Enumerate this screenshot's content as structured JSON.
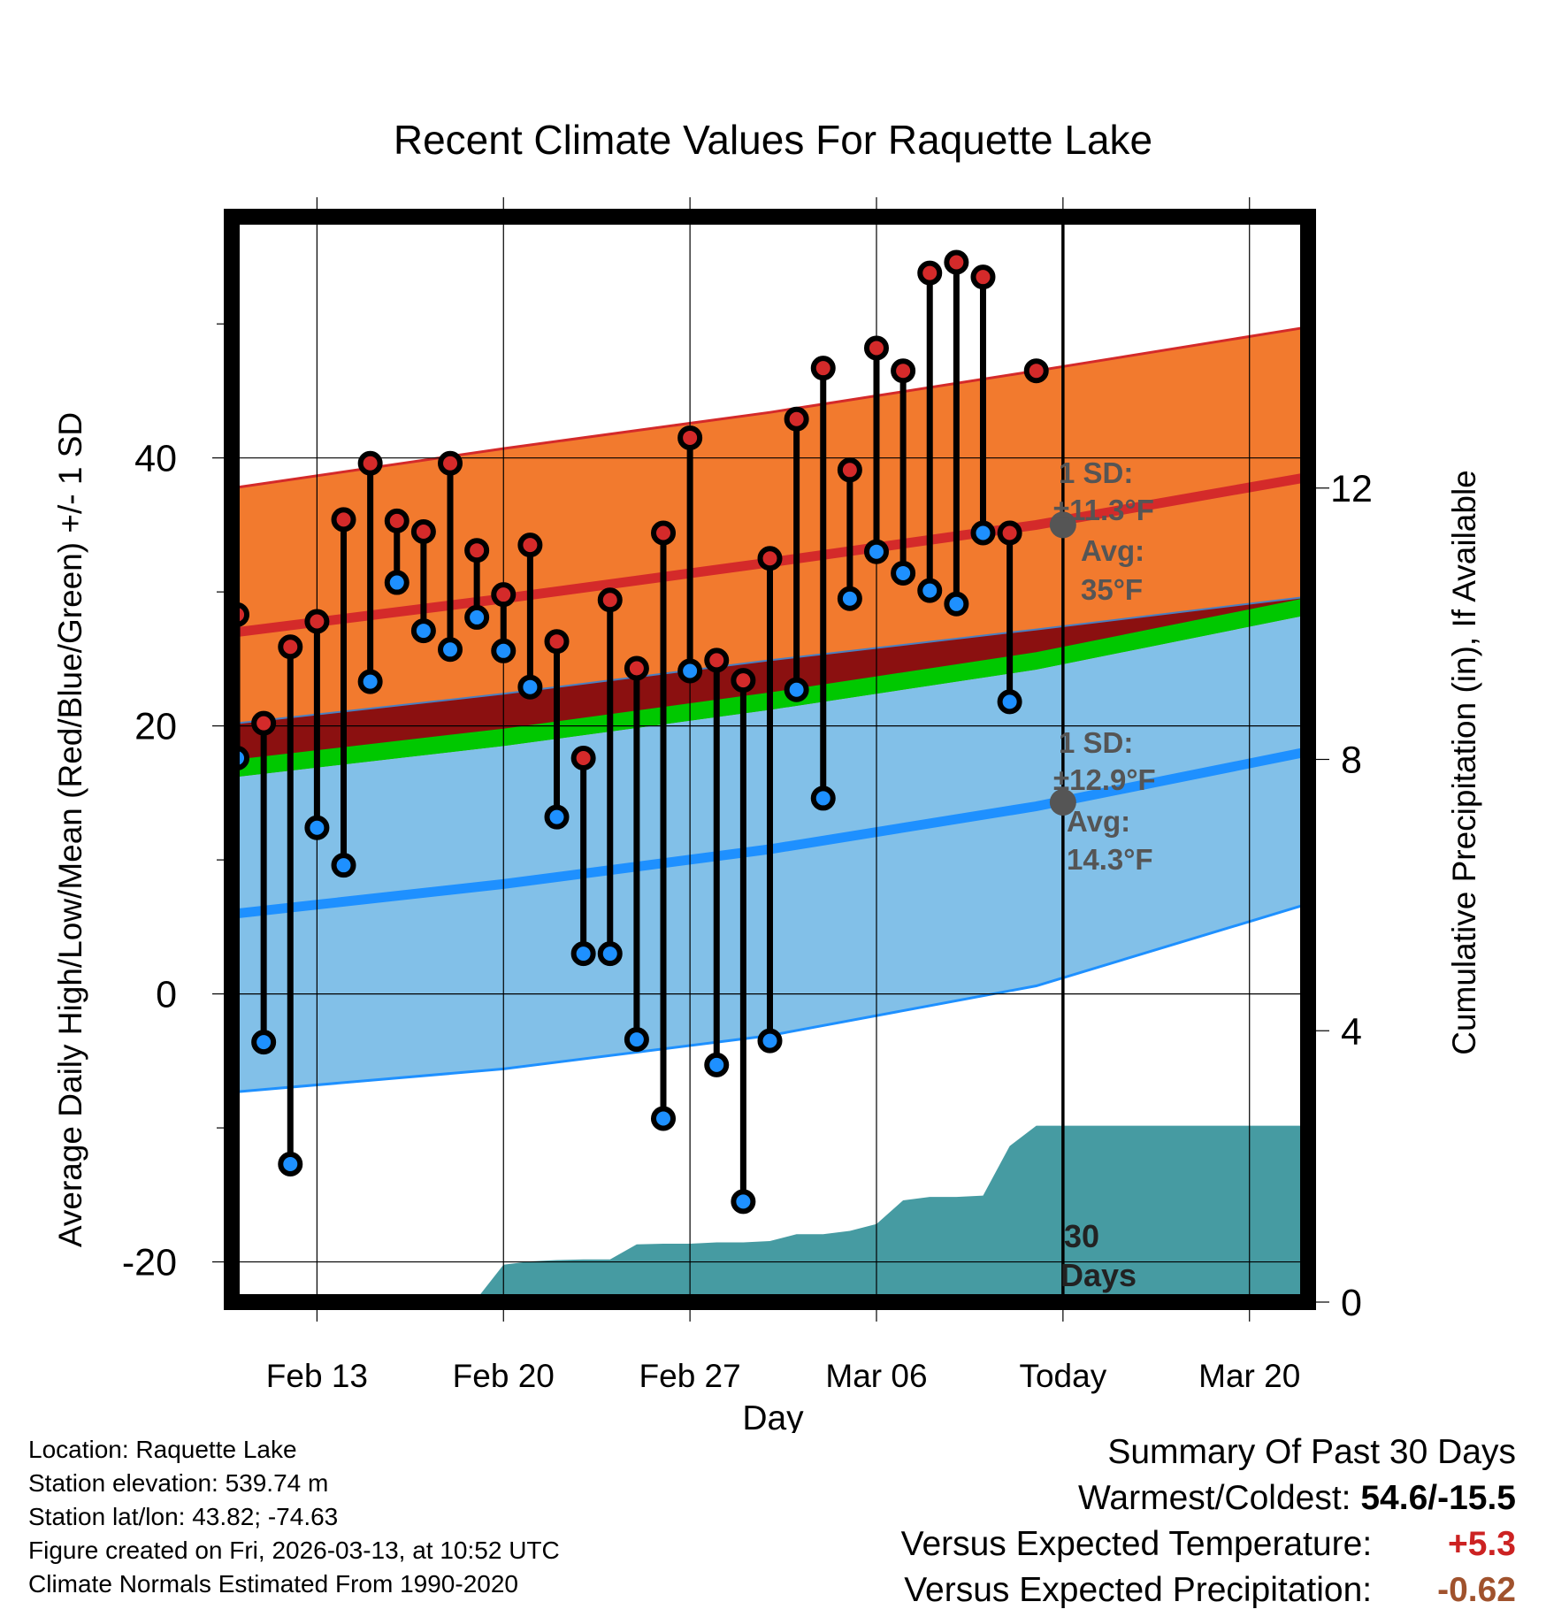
{
  "chart_data": {
    "type": "line",
    "title": "Recent Climate Values For Raquette Lake",
    "xlabel": "Day",
    "ylabel": "Average Daily High/Low/Mean (Red/Blue/Green) +/- 1 SD",
    "y2label": "Cumulative Precipitation (in), If Available",
    "x_ticks": [
      {
        "day": 13,
        "label": "Feb 13"
      },
      {
        "day": 20,
        "label": "Feb 20"
      },
      {
        "day": 27,
        "label": "Feb 27"
      },
      {
        "day": 34,
        "label": "Mar 06"
      },
      {
        "day": 41,
        "label": "Today"
      },
      {
        "day": 48,
        "label": "Mar 20"
      }
    ],
    "x_note": "x values are day numbers counted from Feb 1 (Feb 13 = 13, Mar 06 = 34, Today = Mar 13 = 41)",
    "xlim": [
      9.8,
      50.2
    ],
    "ylim": [
      -23,
      58
    ],
    "y_ticks": [
      -20,
      0,
      20,
      40
    ],
    "y_minor_ticks": [
      -10,
      10,
      30,
      50
    ],
    "y2lim": [
      0,
      16
    ],
    "y2_ticks": [
      0,
      4,
      8,
      12
    ],
    "today_day": 41,
    "normals": {
      "x": [
        10,
        20,
        30,
        40,
        50
      ],
      "high_avg": [
        27,
        29.5,
        32.2,
        35,
        38.5
      ],
      "high_upper": [
        37.8,
        40.7,
        43.4,
        46.5,
        49.7
      ],
      "low_avg": [
        6,
        8.2,
        10.8,
        14,
        18
      ],
      "low_lower": [
        -7.3,
        -5.6,
        -3.1,
        0.6,
        6.6
      ],
      "mean_avg": [
        16.2,
        18.5,
        21.2,
        24.2,
        28.2
      ],
      "mean_upper": [
        20.2,
        22.4,
        24.9,
        27.2,
        29.6
      ]
    },
    "series": [
      {
        "name": "Daily High",
        "color": "#d42a2a",
        "x": [
          10,
          11,
          12,
          13,
          14,
          15,
          16,
          17,
          18,
          19,
          20,
          21,
          22,
          23,
          24,
          25,
          26,
          27,
          28,
          29,
          30,
          31,
          32,
          33,
          34,
          35,
          36,
          37,
          38,
          39,
          40
        ],
        "values": [
          28.3,
          20.2,
          25.9,
          27.8,
          35.4,
          39.6,
          35.3,
          34.5,
          39.6,
          33.1,
          29.8,
          33.5,
          26.3,
          17.6,
          29.4,
          24.3,
          34.4,
          41.5,
          24.9,
          23.4,
          32.5,
          42.9,
          46.7,
          39.1,
          48.2,
          46.5,
          53.8,
          54.6,
          53.5,
          34.4,
          46.5
        ]
      },
      {
        "name": "Daily Low",
        "color": "#1e90ff",
        "x": [
          10,
          11,
          12,
          13,
          14,
          15,
          16,
          17,
          18,
          19,
          20,
          21,
          22,
          23,
          24,
          25,
          26,
          27,
          28,
          29,
          30,
          31,
          32,
          33,
          34,
          35,
          36,
          37,
          38,
          39,
          40
        ],
        "values": [
          17.6,
          -3.6,
          -12.7,
          12.4,
          9.6,
          23.3,
          30.7,
          27.1,
          25.7,
          28.1,
          25.6,
          22.9,
          13.2,
          3.0,
          3.0,
          -3.4,
          -9.3,
          24.1,
          -5.3,
          -15.5,
          -3.5,
          22.7,
          14.6,
          29.5,
          33.0,
          31.4,
          30.1,
          29.1,
          34.4,
          21.8,
          null
        ]
      }
    ],
    "precip_cumulative": {
      "x": [
        10,
        11,
        12,
        13,
        14,
        15,
        16,
        17,
        18,
        19,
        20,
        21,
        22,
        23,
        24,
        25,
        26,
        27,
        28,
        29,
        30,
        31,
        32,
        33,
        34,
        35,
        36,
        37,
        38,
        39,
        40,
        41,
        50
      ],
      "values": [
        0,
        0,
        0,
        0,
        0,
        0,
        0.03,
        0.05,
        0.05,
        0.05,
        0.55,
        0.6,
        0.62,
        0.63,
        0.63,
        0.85,
        0.86,
        0.86,
        0.88,
        0.88,
        0.9,
        1.0,
        1.0,
        1.05,
        1.15,
        1.5,
        1.55,
        1.55,
        1.57,
        2.3,
        2.6,
        2.6,
        2.6
      ]
    },
    "annotations": {
      "high_sd_label": "1 SD:",
      "high_sd_value": "±11.3°F",
      "high_avg_label": "Avg:",
      "high_avg_value": "35°F",
      "low_sd_label": "1 SD:",
      "low_sd_value": "±12.9°F",
      "low_avg_label": "Avg:",
      "low_avg_value": "14.3°F",
      "days_number": "30",
      "days_word": "Days"
    },
    "colors": {
      "high_band": "#f27a2e",
      "high_line": "#d42a2a",
      "low_band": "#82c0e8",
      "low_line": "#1e90ff",
      "mean_band": "#00c800",
      "overlap": "#8b1010",
      "precip": "#469ba2",
      "annotation": "#555555"
    }
  },
  "info": {
    "location": "Location: Raquette Lake",
    "elevation": "Station elevation: 539.74 m",
    "latlon": "Station lat/lon: 43.82; -74.63",
    "created": "Figure created on Fri, 2026-03-13, at 10:52 UTC",
    "normals": "Climate Normals Estimated From 1990-2020"
  },
  "summary": {
    "title": "Summary Of Past 30 Days",
    "warmest_label": "Warmest/Coldest:",
    "warmest_value": "54.6/-15.5",
    "temp_label": "Versus Expected Temperature:",
    "temp_value": "+5.3",
    "temp_color": "#cc2222",
    "precip_label": "Versus Expected Precipitation:",
    "precip_value": "-0.62",
    "precip_color": "#a0522d"
  }
}
